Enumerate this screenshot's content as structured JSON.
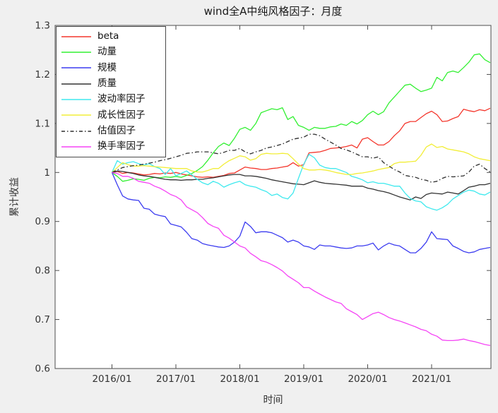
{
  "figure": {
    "background": "#f0f0f0",
    "plot_background": "#ffffff",
    "axis_color": "#4d4d4d",
    "tick_text_color": "#333333"
  },
  "chart_data": {
    "type": "line",
    "title": "wind全A中纯风格因子：月度",
    "xlabel": "时间",
    "ylabel": "累计收益",
    "x_interval": "monthly",
    "x_start": "2016/01",
    "x_end": "2021/12",
    "x_tick_labels": [
      "2016/01",
      "2017/01",
      "2018/01",
      "2019/01",
      "2020/01",
      "2021/01"
    ],
    "x_tick_month_indices": [
      0,
      12,
      24,
      36,
      48,
      60
    ],
    "y_tick_labels": [
      "0.6",
      "0.7",
      "0.8",
      "0.9",
      "1",
      "1.1",
      "1.2",
      "1.3"
    ],
    "y_tick_values": [
      0.6,
      0.7,
      0.8,
      0.9,
      1.0,
      1.1,
      1.2,
      1.3
    ],
    "ylim": [
      0.6,
      1.3
    ],
    "grid": false,
    "legend_position": "northwest",
    "series": [
      {
        "name": "beta",
        "color": "#f4362c",
        "line_style": "solid",
        "values": [
          1.0,
          1.002,
          0.998,
          1.0,
          0.999,
          0.997,
          0.995,
          0.996,
          0.998,
          0.997,
          0.999,
          0.998,
          1.0,
          0.997,
          0.995,
          0.993,
          0.991,
          0.99,
          0.991,
          0.99,
          0.992,
          0.994,
          0.998,
          0.999,
          1.005,
          1.011,
          1.009,
          1.008,
          1.006,
          1.006,
          1.008,
          1.009,
          1.011,
          1.013,
          1.02,
          1.013,
          1.016,
          1.04,
          1.041,
          1.042,
          1.045,
          1.049,
          1.05,
          1.051,
          1.053,
          1.056,
          1.05,
          1.068,
          1.071,
          1.063,
          1.056,
          1.056,
          1.063,
          1.075,
          1.085,
          1.1,
          1.104,
          1.104,
          1.112,
          1.12,
          1.125,
          1.118,
          1.104,
          1.105,
          1.11,
          1.114,
          1.129,
          1.126,
          1.124,
          1.128,
          1.126,
          1.131
        ]
      },
      {
        "name": "动量",
        "color": "#32f032",
        "line_style": "solid",
        "values": [
          1.0,
          0.992,
          0.982,
          0.984,
          0.987,
          0.986,
          0.984,
          0.988,
          0.99,
          0.989,
          0.991,
          0.99,
          0.992,
          0.99,
          0.994,
          0.998,
          1.004,
          1.012,
          1.025,
          1.04,
          1.053,
          1.06,
          1.055,
          1.07,
          1.088,
          1.092,
          1.086,
          1.1,
          1.122,
          1.126,
          1.13,
          1.128,
          1.132,
          1.108,
          1.114,
          1.096,
          1.092,
          1.086,
          1.092,
          1.09,
          1.09,
          1.093,
          1.094,
          1.099,
          1.096,
          1.104,
          1.099,
          1.106,
          1.118,
          1.125,
          1.118,
          1.124,
          1.142,
          1.154,
          1.166,
          1.178,
          1.18,
          1.172,
          1.165,
          1.168,
          1.172,
          1.194,
          1.187,
          1.204,
          1.207,
          1.204,
          1.214,
          1.225,
          1.24,
          1.242,
          1.23,
          1.224
        ]
      },
      {
        "name": "规模",
        "color": "#3c3cf0",
        "line_style": "solid",
        "values": [
          1.0,
          0.975,
          0.952,
          0.946,
          0.944,
          0.943,
          0.927,
          0.925,
          0.915,
          0.912,
          0.91,
          0.895,
          0.892,
          0.889,
          0.878,
          0.865,
          0.862,
          0.855,
          0.852,
          0.85,
          0.848,
          0.847,
          0.85,
          0.858,
          0.87,
          0.899,
          0.89,
          0.877,
          0.879,
          0.879,
          0.877,
          0.872,
          0.867,
          0.858,
          0.862,
          0.858,
          0.85,
          0.848,
          0.843,
          0.852,
          0.85,
          0.85,
          0.848,
          0.846,
          0.845,
          0.846,
          0.85,
          0.85,
          0.852,
          0.856,
          0.842,
          0.85,
          0.856,
          0.852,
          0.85,
          0.843,
          0.836,
          0.836,
          0.845,
          0.858,
          0.879,
          0.865,
          0.864,
          0.863,
          0.85,
          0.845,
          0.839,
          0.836,
          0.838,
          0.843,
          0.845,
          0.847
        ]
      },
      {
        "name": "质量",
        "color": "#333333",
        "line_style": "solid",
        "values": [
          1.0,
          1.003,
          1.002,
          1.0,
          0.998,
          0.995,
          0.993,
          0.992,
          0.99,
          0.988,
          0.986,
          0.985,
          0.985,
          0.984,
          0.985,
          0.985,
          0.986,
          0.986,
          0.988,
          0.989,
          0.991,
          0.993,
          0.995,
          0.996,
          0.996,
          0.993,
          0.993,
          0.992,
          0.99,
          0.988,
          0.985,
          0.983,
          0.981,
          0.979,
          0.977,
          0.976,
          0.975,
          0.979,
          0.983,
          0.98,
          0.978,
          0.977,
          0.976,
          0.975,
          0.974,
          0.972,
          0.972,
          0.972,
          0.968,
          0.966,
          0.963,
          0.961,
          0.958,
          0.954,
          0.95,
          0.947,
          0.944,
          0.95,
          0.947,
          0.955,
          0.958,
          0.957,
          0.956,
          0.96,
          0.958,
          0.956,
          0.963,
          0.97,
          0.972,
          0.975,
          0.975,
          0.978
        ]
      },
      {
        "name": "波动率因子",
        "color": "#3fe9ee",
        "line_style": "solid",
        "values": [
          1.0,
          1.024,
          1.017,
          1.02,
          1.022,
          1.018,
          1.015,
          1.018,
          1.012,
          1.008,
          0.996,
          1.008,
          0.993,
          0.998,
          1.003,
          0.995,
          0.986,
          0.979,
          0.975,
          0.982,
          0.978,
          0.97,
          0.975,
          0.979,
          0.982,
          0.975,
          0.972,
          0.97,
          0.965,
          0.961,
          0.953,
          0.956,
          0.949,
          0.946,
          0.958,
          0.988,
          1.017,
          1.037,
          1.03,
          1.015,
          1.01,
          1.008,
          1.008,
          1.004,
          1.0,
          0.992,
          0.989,
          0.985,
          0.979,
          0.981,
          0.978,
          0.978,
          0.975,
          0.972,
          0.972,
          0.958,
          0.947,
          0.942,
          0.94,
          0.93,
          0.926,
          0.923,
          0.928,
          0.935,
          0.946,
          0.953,
          0.96,
          0.964,
          0.962,
          0.956,
          0.954,
          0.96
        ]
      },
      {
        "name": "成长性因子",
        "color": "#f2ee38",
        "line_style": "solid",
        "values": [
          1.0,
          1.01,
          1.02,
          1.016,
          1.013,
          1.013,
          1.014,
          1.013,
          1.012,
          1.011,
          1.01,
          1.009,
          1.008,
          1.008,
          1.008,
          1.003,
          1.001,
          1.001,
          1.004,
          1.008,
          1.008,
          1.017,
          1.024,
          1.029,
          1.034,
          1.032,
          1.025,
          1.028,
          1.037,
          1.039,
          1.038,
          1.038,
          1.039,
          1.038,
          1.028,
          1.017,
          1.008,
          1.005,
          1.005,
          1.006,
          1.005,
          1.003,
          1.0,
          0.998,
          0.996,
          0.996,
          0.998,
          0.999,
          1.001,
          1.003,
          1.006,
          1.008,
          1.01,
          1.018,
          1.021,
          1.021,
          1.022,
          1.023,
          1.035,
          1.052,
          1.058,
          1.051,
          1.053,
          1.048,
          1.046,
          1.044,
          1.042,
          1.038,
          1.032,
          1.028,
          1.026,
          1.024
        ]
      },
      {
        "name": "估值因子",
        "color": "#2e2e2e",
        "line_style": "dash-dot",
        "values": [
          1.0,
          1.005,
          1.01,
          1.012,
          1.014,
          1.015,
          1.017,
          1.019,
          1.021,
          1.024,
          1.026,
          1.029,
          1.032,
          1.035,
          1.039,
          1.04,
          1.042,
          1.042,
          1.042,
          1.04,
          1.038,
          1.041,
          1.045,
          1.045,
          1.049,
          1.042,
          1.038,
          1.042,
          1.045,
          1.05,
          1.052,
          1.055,
          1.058,
          1.063,
          1.068,
          1.07,
          1.072,
          1.078,
          1.078,
          1.075,
          1.068,
          1.062,
          1.056,
          1.049,
          1.046,
          1.042,
          1.037,
          1.032,
          1.032,
          1.029,
          1.032,
          1.02,
          1.013,
          1.006,
          1.001,
          0.994,
          0.992,
          0.99,
          0.986,
          0.984,
          0.98,
          0.982,
          0.988,
          0.992,
          0.991,
          0.992,
          0.993,
          1.001,
          1.013,
          1.017,
          1.008,
          1.001
        ]
      },
      {
        "name": "换手率因子",
        "color": "#f544f5",
        "line_style": "solid",
        "values": [
          1.0,
          0.998,
          0.992,
          0.992,
          0.988,
          0.982,
          0.98,
          0.978,
          0.972,
          0.968,
          0.962,
          0.955,
          0.951,
          0.944,
          0.93,
          0.924,
          0.918,
          0.908,
          0.896,
          0.89,
          0.886,
          0.872,
          0.866,
          0.858,
          0.85,
          0.846,
          0.835,
          0.828,
          0.82,
          0.817,
          0.812,
          0.806,
          0.799,
          0.789,
          0.782,
          0.775,
          0.765,
          0.765,
          0.758,
          0.752,
          0.746,
          0.741,
          0.736,
          0.733,
          0.722,
          0.716,
          0.71,
          0.7,
          0.706,
          0.712,
          0.715,
          0.71,
          0.704,
          0.7,
          0.697,
          0.693,
          0.689,
          0.685,
          0.68,
          0.677,
          0.67,
          0.666,
          0.658,
          0.657,
          0.657,
          0.658,
          0.66,
          0.657,
          0.655,
          0.652,
          0.649,
          0.647
        ]
      }
    ]
  }
}
